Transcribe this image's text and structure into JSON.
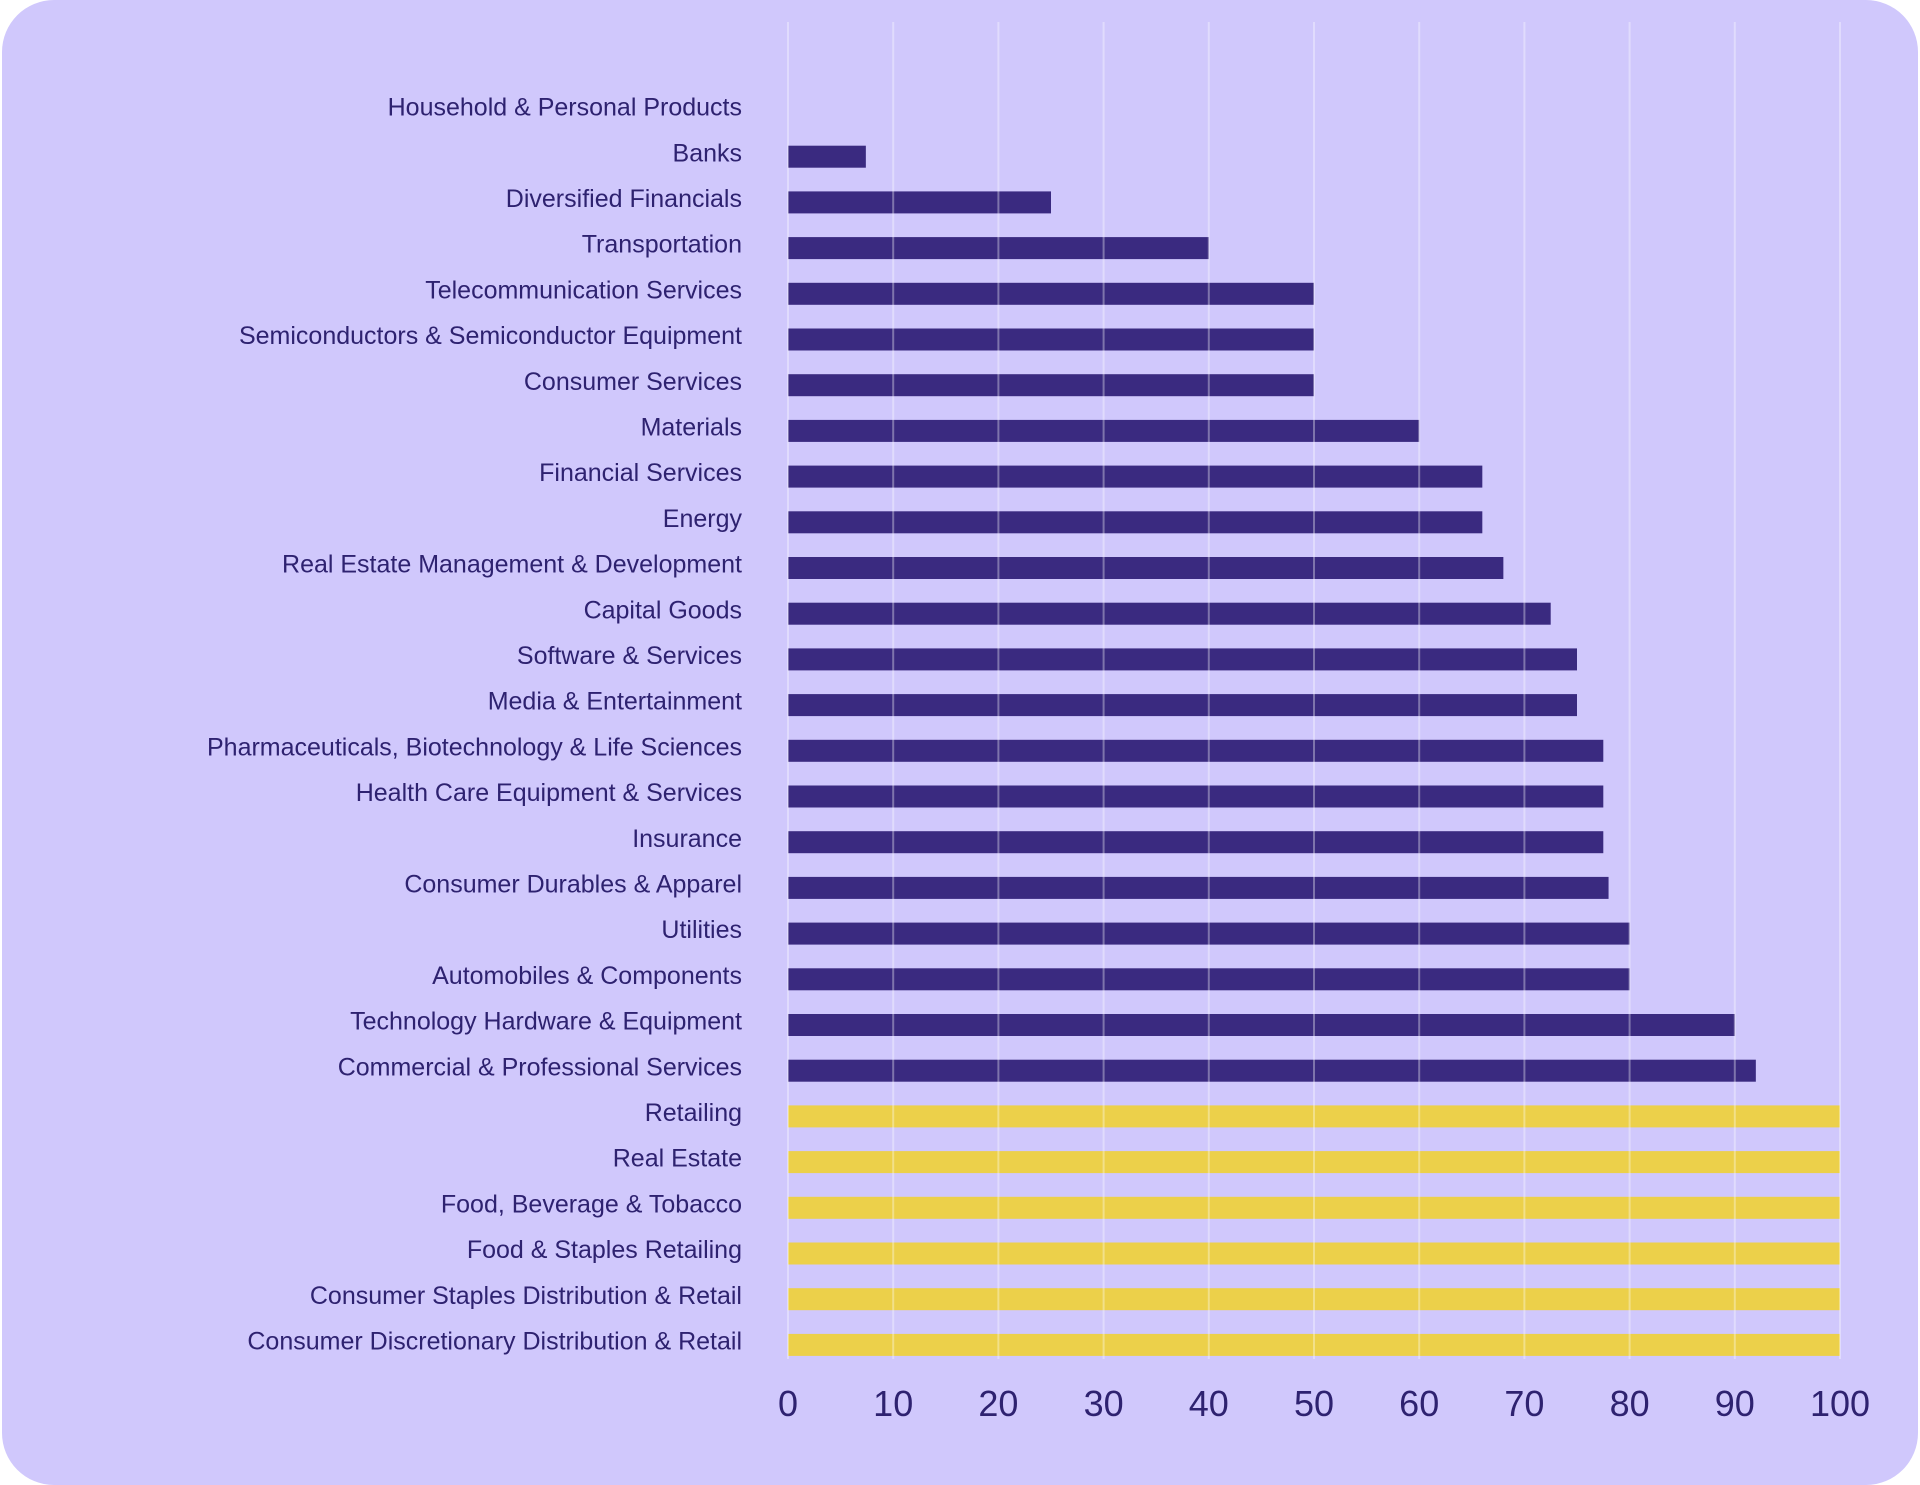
{
  "chart_data": {
    "type": "bar",
    "orientation": "horizontal",
    "categories": [
      "Household & Personal Products",
      "Banks",
      "Diversified Financials",
      "Transportation",
      "Telecommunication Services",
      "Semiconductors & Semiconductor Equipment",
      "Consumer Services",
      "Materials",
      "Financial Services",
      "Energy",
      "Real Estate Management & Development",
      "Capital Goods",
      "Software & Services",
      "Media & Entertainment",
      "Pharmaceuticals, Biotechnology & Life Sciences",
      "Health Care Equipment & Services",
      "Insurance",
      "Consumer Durables & Apparel",
      "Utilities",
      "Automobiles & Components",
      "Technology Hardware & Equipment",
      "Commercial & Professional Services",
      "Retailing",
      "Real Estate",
      "Food, Beverage & Tobacco",
      "Food & Staples Retailing",
      "Consumer Staples Distribution & Retail",
      "Consumer Discretionary Distribution & Retail"
    ],
    "values": [
      0,
      7.4,
      25,
      40,
      50,
      50,
      50,
      60,
      66,
      66,
      68,
      72.5,
      75,
      75,
      77.5,
      77.5,
      77.5,
      78,
      80,
      80,
      90,
      92,
      100,
      100,
      100,
      100,
      100,
      100
    ],
    "xlim": [
      0,
      100
    ],
    "xticks": [
      "0",
      "10",
      "20",
      "30",
      "40",
      "50",
      "60",
      "70",
      "80",
      "90",
      "100"
    ],
    "grid": "vertical",
    "title": "",
    "xlabel": "",
    "ylabel": "",
    "colors": {
      "default": "#3a2a80",
      "max": "#ecd04a",
      "background": "#d0c8fc",
      "text": "#2e2270"
    }
  }
}
